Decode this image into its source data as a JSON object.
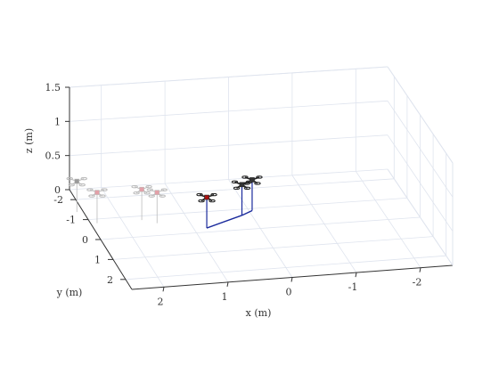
{
  "chart_data": {
    "type": "scatter3d",
    "xlabel": "x (m)",
    "ylabel": "y (m)",
    "zlabel": "z (m)",
    "xticks": [
      "2",
      "1",
      "0",
      "-1",
      "-2"
    ],
    "yticks": [
      "-2",
      "-1",
      "0",
      "1",
      "2"
    ],
    "zticks": [
      "1.5",
      "1",
      "0.5",
      "0"
    ],
    "xlim": [
      -2.5,
      2.5
    ],
    "ylim": [
      -2.5,
      2.5
    ],
    "zlim": [
      0,
      1.5
    ],
    "grid": true,
    "colors": {
      "background": "#ffffff",
      "box_edge": "#333333",
      "grid": "#dfe4ee",
      "drone_active": "#222222",
      "drone_faded": "#bbbbbb",
      "leader_body": "#aa1111",
      "formation_line": "#1a2a9c"
    },
    "drones": [
      {
        "x": 0.8,
        "y": -0.2,
        "z": 0.45,
        "state": "active",
        "body": "red"
      },
      {
        "x": 0.15,
        "y": -0.7,
        "z": 0.45,
        "state": "active",
        "body": "dark"
      },
      {
        "x": -0.05,
        "y": -0.9,
        "z": 0.45,
        "state": "active",
        "body": "dark"
      },
      {
        "x": 1.7,
        "y": -0.8,
        "z": 0.45,
        "state": "faded",
        "body": "pink"
      },
      {
        "x": 1.5,
        "y": -0.6,
        "z": 0.45,
        "state": "faded",
        "body": "pink"
      },
      {
        "x": 2.6,
        "y": -1.4,
        "z": 0.45,
        "state": "faded",
        "body": "grey"
      },
      {
        "x": 2.4,
        "y": -0.8,
        "z": 0.45,
        "state": "faded",
        "body": "pink"
      }
    ]
  }
}
